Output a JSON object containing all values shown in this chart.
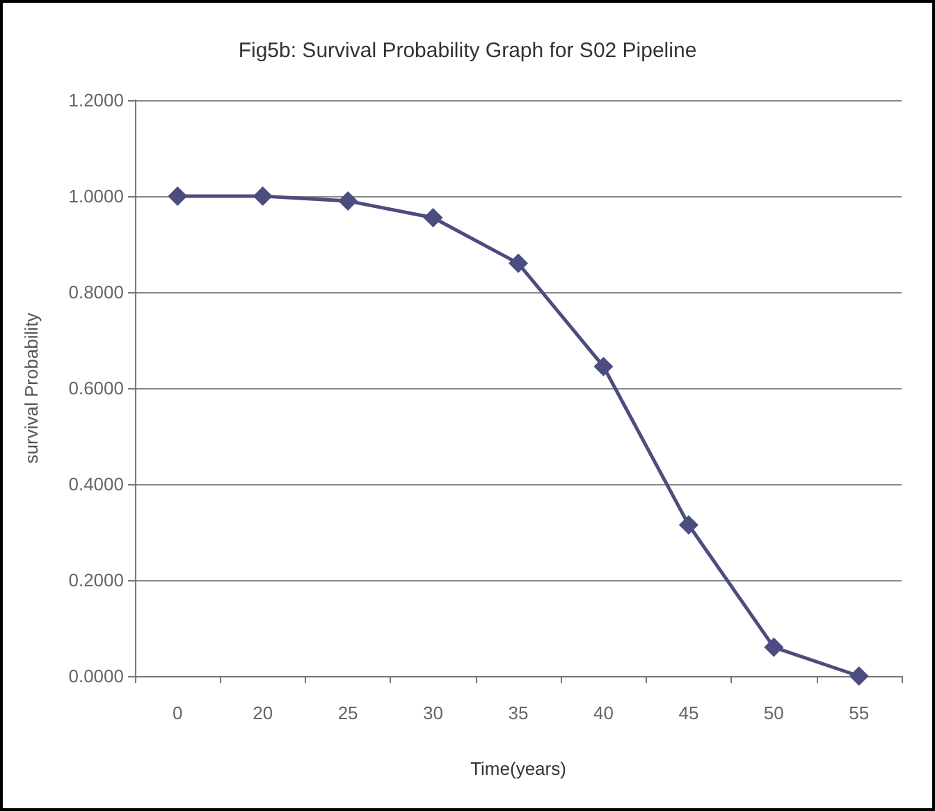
{
  "chart_data": {
    "type": "line",
    "title": "Fig5b: Survival Probability Graph for S02 Pipeline",
    "xlabel": "Time(years)",
    "ylabel": "survival Probability",
    "categories": [
      "0",
      "20",
      "25",
      "30",
      "35",
      "40",
      "45",
      "50",
      "55"
    ],
    "series": [
      {
        "color": "#4b4c80",
        "values": [
          1.0,
          1.0,
          0.99,
          0.955,
          0.86,
          0.645,
          0.315,
          0.06,
          0.0
        ]
      }
    ],
    "ylim": [
      0,
      1.2
    ],
    "yticks": [
      {
        "value": 0,
        "label": "0.0000"
      },
      {
        "value": 0.2,
        "label": "0.2000"
      },
      {
        "value": 0.4,
        "label": "0.4000"
      },
      {
        "value": 0.6,
        "label": "0.6000"
      },
      {
        "value": 0.8,
        "label": "0.8000"
      },
      {
        "value": 1.0,
        "label": "1.0000"
      },
      {
        "value": 1.2,
        "label": "1.2000"
      }
    ],
    "grid": "y",
    "marker": "diamond",
    "line_style": "solid"
  }
}
